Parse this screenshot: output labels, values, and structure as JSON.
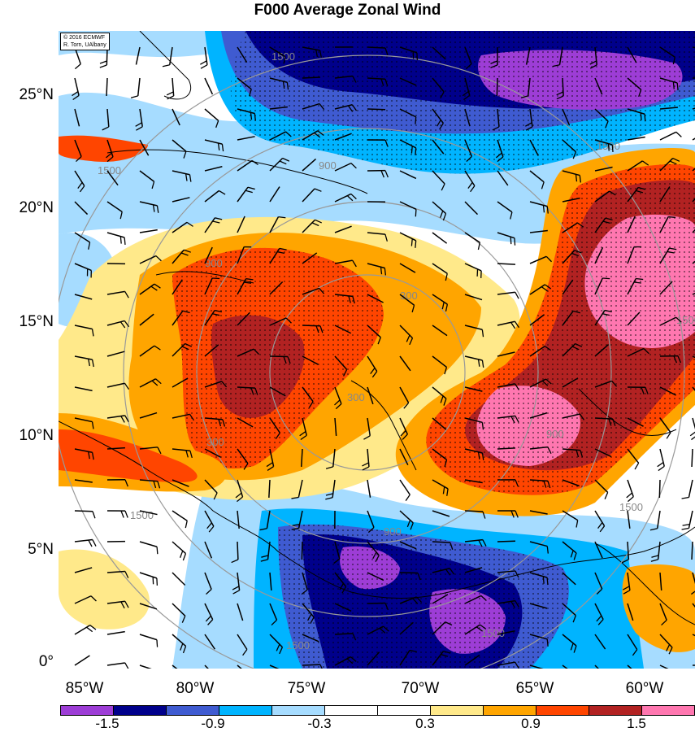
{
  "title": "F000 Average Zonal Wind",
  "credit": {
    "line1": "© 2016 ECMWF",
    "line2": "R. Torn, UAlbany"
  },
  "lat_labels": [
    "25°N",
    "20°N",
    "15°N",
    "10°N",
    "5°N",
    "0°"
  ],
  "lon_labels": [
    "85°W",
    "80°W",
    "75°W",
    "70°W",
    "65°W",
    "60°W"
  ],
  "contour_labels": [
    "1500",
    "1500",
    "1500",
    "900",
    "900",
    "300",
    "300",
    "300",
    "900",
    "900",
    "1500",
    "1500",
    "1500",
    "1500",
    "1500"
  ],
  "colorbar": {
    "labels": [
      "-1.5",
      "-0.9",
      "-0.3",
      "0.3",
      "0.9",
      "1.5"
    ],
    "colors": [
      "#9d3dd6",
      "#00008b",
      "#3f5bd1",
      "#00b4ff",
      "#a6dcff",
      "#ffffff",
      "#ffffff",
      "#ffe98a",
      "#ffa500",
      "#ff4500",
      "#b22222",
      "#ff77b0"
    ]
  }
}
